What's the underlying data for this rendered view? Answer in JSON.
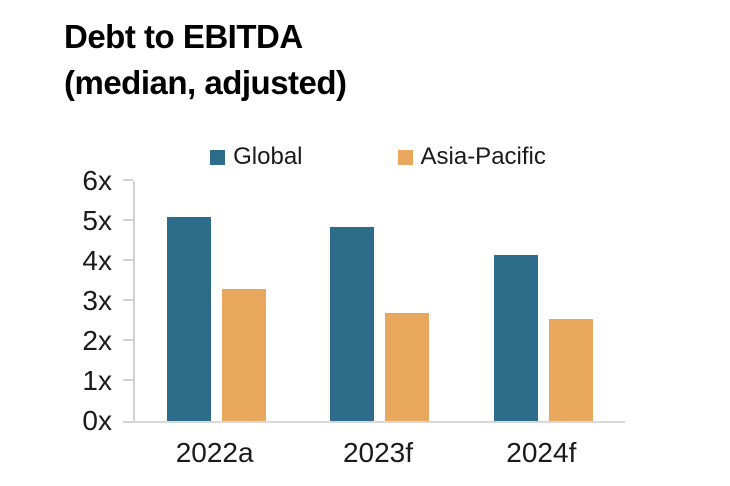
{
  "title": {
    "line1": "Debt to EBITDA",
    "line2": "(median, adjusted)"
  },
  "chart_data": {
    "type": "bar",
    "title": "Debt to EBITDA (median, adjusted)",
    "categories": [
      "2022a",
      "2023f",
      "2024f"
    ],
    "series": [
      {
        "name": "Global",
        "color": "#2e6d89",
        "values": [
          5.1,
          4.85,
          4.15
        ]
      },
      {
        "name": "Asia-Pacific",
        "color": "#e7a85e",
        "values": [
          3.3,
          2.7,
          2.55
        ]
      }
    ],
    "xlabel": "",
    "ylabel": "",
    "ylim": [
      0,
      6
    ],
    "yticks": [
      "0x",
      "1x",
      "2x",
      "3x",
      "4x",
      "5x",
      "6x"
    ],
    "unit_suffix": "x",
    "grid": false,
    "legend_position": "top-center"
  },
  "colors": {
    "axis_line": "#d2d2d2",
    "baseline": "#d9d9d9",
    "label_text": "#1a1a1a",
    "title_text": "#000000",
    "background": "#ffffff"
  }
}
